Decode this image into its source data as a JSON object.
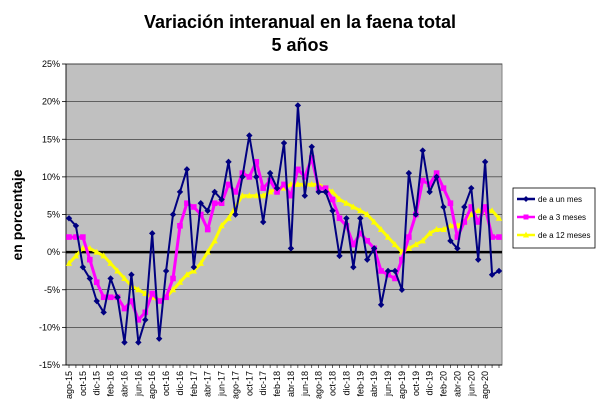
{
  "chart_data": {
    "type": "line",
    "title": "Variación interanual en la faena total",
    "subtitle": "5 años",
    "xlabel": "",
    "ylabel": "en porcentaje",
    "ylim": [
      -15,
      25
    ],
    "yticks": [
      -15,
      -10,
      -5,
      0,
      5,
      10,
      15,
      20,
      25
    ],
    "ytick_labels": [
      "-15%",
      "-10%",
      "-5%",
      "0%",
      "5%",
      "10%",
      "15%",
      "20%",
      "25%"
    ],
    "x_labels": [
      "ago-15",
      "oct-15",
      "dic-15",
      "feb-16",
      "abr-16",
      "jun-16",
      "ago-16",
      "oct-16",
      "dic-16",
      "feb-17",
      "abr-17",
      "jun-17",
      "ago-17",
      "oct-17",
      "dic-17",
      "feb-18",
      "abr-18",
      "jun-18",
      "ago-18",
      "oct-18",
      "dic-18",
      "feb-19",
      "abr-19",
      "jun-19",
      "ago-19",
      "oct-19",
      "dic-19",
      "feb-20",
      "abr-20",
      "jun-20",
      "ago-20"
    ],
    "grid": "horizontal",
    "plot_background": "#c0c0c0",
    "legend_position": "right",
    "series": [
      {
        "name": "de a un mes",
        "color": "#000080",
        "marker": "diamond",
        "values": [
          4.5,
          3.5,
          -2,
          -3.5,
          -6.5,
          -8,
          -3.5,
          -6,
          -12,
          -3,
          -12,
          -9,
          2.5,
          -11.5,
          -2.5,
          5,
          8,
          11,
          -2,
          6.5,
          5.5,
          8,
          7,
          12,
          5,
          10,
          15.5,
          10,
          4,
          10.5,
          8.5,
          14.5,
          0.5,
          19.5,
          7.5,
          14,
          8,
          8,
          5.5,
          -0.5,
          4.5,
          -2,
          4.5,
          -1,
          0.5,
          -7,
          -2.5,
          -2.5,
          -5,
          10.5,
          5,
          13.5,
          8,
          10,
          6,
          1.5,
          0.5,
          6,
          8.5,
          -1,
          12,
          -3,
          -2.5
        ]
      },
      {
        "name": "de a 3 meses",
        "color": "#ff00ff",
        "marker": "square",
        "values": [
          2,
          2,
          2,
          -1,
          -4,
          -6,
          -6,
          -6,
          -7.5,
          -6.5,
          -9,
          -8,
          -5.5,
          -6.5,
          -6,
          -3.5,
          3.5,
          6.5,
          6,
          5,
          3,
          6.5,
          6.5,
          9,
          8,
          10.5,
          10,
          12,
          8.5,
          9.5,
          8,
          9,
          7.5,
          11,
          10,
          12.5,
          8.5,
          8.5,
          7,
          4.5,
          3.5,
          1,
          2.5,
          1.5,
          0.5,
          -2.5,
          -3,
          -3.5,
          -1,
          2,
          5,
          9.5,
          9,
          10.5,
          8.5,
          6.5,
          2,
          4,
          6,
          4,
          6,
          2,
          2
        ]
      },
      {
        "name": "de a 12 meses",
        "color": "#ffff00",
        "marker": "triangle",
        "values": [
          -1.5,
          -0.5,
          0.5,
          0.5,
          0,
          -0.5,
          -1.5,
          -2.5,
          -3.5,
          -4.5,
          -5,
          -5.5,
          -6,
          -6.5,
          -6,
          -5,
          -4,
          -3,
          -2.5,
          -1.5,
          0,
          1.5,
          3.5,
          4.5,
          6,
          7.5,
          7.5,
          7.5,
          7.5,
          8,
          8.5,
          8.5,
          9,
          9,
          9,
          9,
          9,
          8.5,
          8,
          7,
          6.5,
          6,
          5.5,
          5,
          4,
          3,
          2,
          1,
          0,
          0.5,
          1,
          1.5,
          2.5,
          3,
          3,
          3.5,
          3.5,
          4,
          5,
          5.5,
          5.5,
          5.5,
          4.5
        ]
      }
    ]
  }
}
